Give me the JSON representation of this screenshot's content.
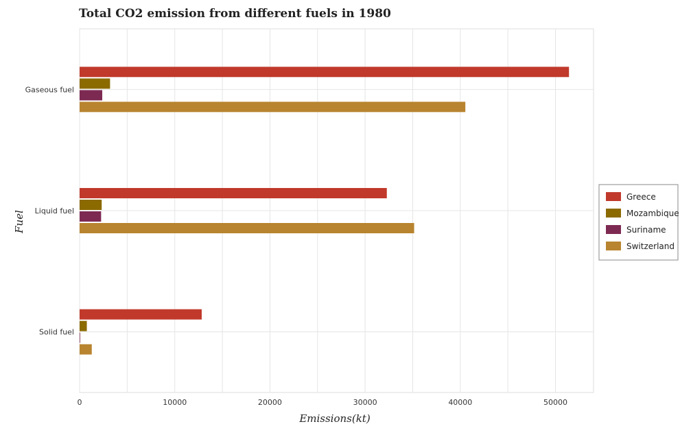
{
  "chart_data": {
    "type": "bar",
    "orientation": "horizontal",
    "title": "Total CO2 emission from different fuels in 1980",
    "xlabel": "Emissions(kt)",
    "ylabel": "Fuel",
    "categories": [
      "Gaseous fuel",
      "Liquid fuel",
      "Solid fuel"
    ],
    "series": [
      {
        "name": "Greece",
        "color": "#c0392b",
        "values": [
          51420,
          32280,
          12830
        ]
      },
      {
        "name": "Mozambique",
        "color": "#8b6a00",
        "values": [
          3200,
          2320,
          760
        ]
      },
      {
        "name": "Suriname",
        "color": "#7d2a52",
        "values": [
          2380,
          2260,
          60
        ]
      },
      {
        "name": "Switzerland",
        "color": "#b8842f",
        "values": [
          40530,
          35150,
          1280
        ]
      }
    ],
    "xlim": [
      0,
      54000
    ],
    "xticks": [
      0,
      10000,
      20000,
      30000,
      40000,
      50000
    ],
    "grid": true,
    "legend_position": "right"
  }
}
